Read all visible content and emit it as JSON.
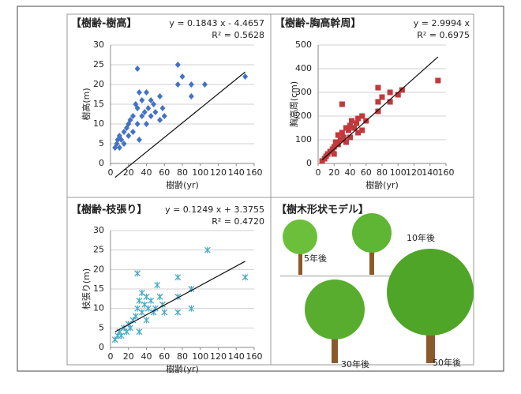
{
  "chart_data": [
    {
      "type": "scatter",
      "title": "【樹齢-樹高】",
      "x_label": "樹齢(yr)",
      "y_label": "樹高(m)",
      "marker": "diamond",
      "color": "#4472c4",
      "trendline": {
        "label": "y = 0.1843 x - 4.4657",
        "r2_label": "R² = 0.5628",
        "slope": 0.1843,
        "intercept": -4.4657
      },
      "x": [
        5,
        7,
        8,
        10,
        10,
        12,
        15,
        15,
        18,
        20,
        20,
        22,
        25,
        25,
        28,
        30,
        30,
        30,
        32,
        32,
        35,
        35,
        38,
        40,
        40,
        42,
        45,
        45,
        48,
        50,
        55,
        55,
        58,
        60,
        75,
        75,
        80,
        90,
        90,
        105,
        150
      ],
      "values": [
        4,
        5,
        6,
        4,
        7,
        6,
        8,
        5,
        9,
        10,
        7,
        11,
        12,
        8,
        15,
        14,
        24,
        10,
        18,
        6,
        16,
        12,
        13,
        18,
        10,
        14,
        16,
        12,
        15,
        13,
        17,
        11,
        14,
        12,
        25,
        20,
        22,
        20,
        17,
        20,
        22
      ],
      "xlim": [
        0,
        160
      ],
      "xticks": [
        0,
        20,
        40,
        60,
        80,
        100,
        120,
        140,
        160
      ],
      "ylim": [
        0,
        30
      ],
      "yticks": [
        0,
        5,
        10,
        15,
        20,
        25,
        30
      ],
      "grid": true
    },
    {
      "type": "scatter",
      "title": "【樹齢-胸高幹周】",
      "x_label": "樹齢(yr)",
      "y_label": "胸高周(cm)",
      "marker": "square",
      "color": "#c0393b",
      "trendline": {
        "label": "y = 2.9994 x",
        "r2_label": "R² = 0.6975",
        "slope": 2.9994,
        "intercept": 0
      },
      "x": [
        5,
        8,
        10,
        12,
        15,
        18,
        20,
        20,
        22,
        25,
        25,
        28,
        30,
        30,
        32,
        35,
        35,
        38,
        40,
        40,
        42,
        45,
        48,
        50,
        50,
        55,
        55,
        60,
        75,
        75,
        75,
        80,
        90,
        90,
        100,
        105,
        150
      ],
      "values": [
        10,
        20,
        30,
        40,
        50,
        60,
        70,
        40,
        90,
        80,
        120,
        100,
        130,
        250,
        110,
        150,
        90,
        140,
        160,
        110,
        180,
        150,
        170,
        190,
        130,
        200,
        140,
        180,
        220,
        260,
        320,
        280,
        300,
        260,
        290,
        310,
        350
      ],
      "xlim": [
        0,
        160
      ],
      "xticks": [
        0,
        20,
        40,
        60,
        80,
        100,
        120,
        140,
        160
      ],
      "ylim": [
        0,
        500
      ],
      "yticks": [
        0,
        100,
        200,
        300,
        400,
        500
      ],
      "grid": true
    },
    {
      "type": "scatter",
      "title": "【樹齢-枝張り】",
      "x_label": "樹齢(yr)",
      "y_label": "枝張り(m)",
      "marker": "asterisk",
      "color": "#4bacc6",
      "trendline": {
        "label": "y = 0.1249 x + 3.3755",
        "r2_label": "R² = 0.4720",
        "slope": 0.1249,
        "intercept": 3.3755
      },
      "x": [
        5,
        8,
        10,
        12,
        15,
        18,
        20,
        22,
        25,
        28,
        30,
        30,
        32,
        32,
        35,
        35,
        38,
        40,
        40,
        42,
        45,
        48,
        50,
        52,
        55,
        58,
        60,
        75,
        75,
        75,
        90,
        90,
        108,
        150
      ],
      "values": [
        2,
        3,
        4,
        3,
        5,
        4,
        6,
        5,
        7,
        8,
        19,
        10,
        12,
        4,
        14,
        9,
        11,
        13,
        7,
        10,
        12,
        9,
        10,
        16,
        13,
        11,
        9,
        18,
        13,
        9,
        15,
        10,
        25,
        18
      ],
      "xlim": [
        0,
        160
      ],
      "xticks": [
        0,
        20,
        40,
        60,
        80,
        100,
        120,
        140,
        160
      ],
      "ylim": [
        0,
        30
      ],
      "yticks": [
        0,
        5,
        10,
        15,
        20,
        25,
        30
      ],
      "grid": true
    }
  ],
  "illustration": {
    "title": "【樹木形状モデル】",
    "labels": [
      "5年後",
      "10年後",
      "30年後",
      "50年後"
    ]
  }
}
